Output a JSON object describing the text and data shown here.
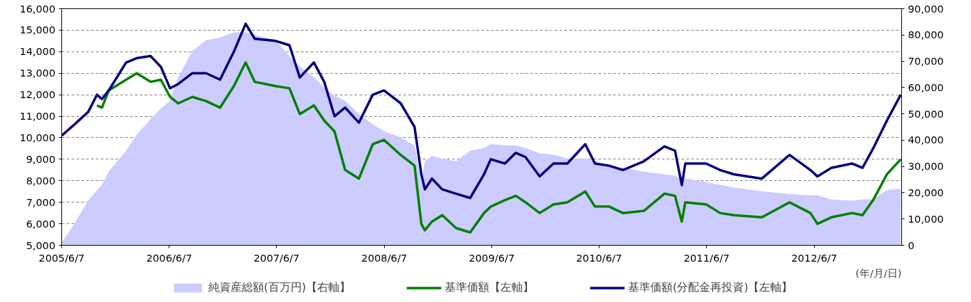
{
  "chart_data": {
    "type": "line",
    "xlabel": "(年/月/日)",
    "x": [
      "2005-06-07",
      "2005-07-19",
      "2005-09-05",
      "2005-10-05",
      "2005-10-22",
      "2005-11-14",
      "2006-01-12",
      "2006-02-17",
      "2006-04-05",
      "2006-05-10",
      "2006-06-10",
      "2006-07-08",
      "2006-08-25",
      "2006-10-11",
      "2006-11-27",
      "2007-01-13",
      "2007-02-22",
      "2007-03-25",
      "2007-06-04",
      "2007-07-21",
      "2007-08-25",
      "2007-10-12",
      "2007-11-16",
      "2007-12-21",
      "2008-01-26",
      "2008-03-13",
      "2008-04-29",
      "2008-06-06",
      "2008-08-02",
      "2008-09-18",
      "2008-10-11",
      "2008-10-23",
      "2008-11-16",
      "2008-12-21",
      "2009-02-06",
      "2009-03-26",
      "2009-05-12",
      "2009-06-04",
      "2009-07-22",
      "2009-08-28",
      "2009-09-30",
      "2009-11-17",
      "2010-01-03",
      "2010-02-19",
      "2010-04-21",
      "2010-05-24",
      "2010-07-11",
      "2010-08-27",
      "2010-11-06",
      "2011-01-15",
      "2011-02-20",
      "2011-03-15",
      "2011-03-27",
      "2011-06-06",
      "2011-07-23",
      "2011-09-08",
      "2011-12-12",
      "2012-03-15",
      "2012-05-25",
      "2012-06-18",
      "2012-08-04",
      "2012-10-14",
      "2012-11-18",
      "2012-12-24",
      "2013-02-09",
      "2013-03-28"
    ],
    "series": [
      {
        "name": "純資産総額(百万円)【右軸】",
        "type": "area",
        "axis": "y2",
        "color": "#ccccff",
        "values": [
          1000,
          8000,
          17000,
          21000,
          23000,
          28000,
          36000,
          42000,
          48000,
          52000,
          55000,
          64000,
          74000,
          78000,
          79000,
          81000,
          81000,
          80000,
          78000,
          72000,
          68000,
          64000,
          60000,
          57000,
          55000,
          50000,
          46000,
          43500,
          41000,
          38000,
          24000,
          32000,
          34000,
          33000,
          32000,
          36000,
          37000,
          38500,
          38000,
          38000,
          37000,
          35000,
          34500,
          33000,
          33000,
          32000,
          30000,
          29500,
          28000,
          27000,
          26500,
          25000,
          25500,
          24000,
          23000,
          22000,
          20500,
          19500,
          19000,
          19000,
          17500,
          17000,
          17500,
          17500,
          21000,
          21500
        ]
      },
      {
        "name": "基準価額【左軸】",
        "type": "line",
        "color": "#008000",
        "values": [
          null,
          null,
          null,
          11500,
          11400,
          12200,
          12700,
          13000,
          12600,
          12700,
          11900,
          11600,
          11900,
          11700,
          11400,
          12400,
          13500,
          12600,
          12400,
          12300,
          11100,
          11500,
          10800,
          10300,
          8500,
          8100,
          9700,
          9900,
          9200,
          8700,
          6000,
          5700,
          6100,
          6400,
          5800,
          5600,
          6500,
          6800,
          7100,
          7300,
          7000,
          6500,
          6900,
          7000,
          7500,
          6800,
          6800,
          6500,
          6600,
          7400,
          7300,
          6100,
          7000,
          6900,
          6500,
          6400,
          6300,
          7000,
          6500,
          6000,
          6300,
          6500,
          6400,
          7100,
          8300,
          9000
        ]
      },
      {
        "name": "基準価額(分配金再投資)【左軸】",
        "type": "line",
        "color": "#000080",
        "values": [
          10100,
          10600,
          11200,
          12000,
          11800,
          12200,
          13500,
          13700,
          13800,
          13300,
          12300,
          12500,
          13000,
          13000,
          12700,
          14000,
          15300,
          14600,
          14500,
          14300,
          12800,
          13500,
          12600,
          11000,
          11400,
          10700,
          12000,
          12200,
          11600,
          10500,
          8300,
          7600,
          8100,
          7600,
          7400,
          7200,
          8300,
          9000,
          8800,
          9300,
          9100,
          8200,
          8800,
          8800,
          9700,
          8800,
          8700,
          8500,
          8900,
          9600,
          9400,
          7800,
          8800,
          8800,
          8500,
          8300,
          8100,
          9200,
          8500,
          8200,
          8600,
          8800,
          8600,
          9500,
          10800,
          12000
        ]
      }
    ],
    "xlim": [
      "2005-06-07",
      "2013-03-31"
    ],
    "xticks": [
      {
        "value": "2005-06-07",
        "label": "2005/6/7"
      },
      {
        "value": "2006-06-07",
        "label": "2006/6/7"
      },
      {
        "value": "2007-06-07",
        "label": "2007/6/7"
      },
      {
        "value": "2008-06-07",
        "label": "2008/6/7"
      },
      {
        "value": "2009-06-07",
        "label": "2009/6/7"
      },
      {
        "value": "2010-06-07",
        "label": "2010/6/7"
      },
      {
        "value": "2011-06-07",
        "label": "2011/6/7"
      },
      {
        "value": "2012-06-07",
        "label": "2012/6/7"
      }
    ],
    "ylim": [
      5000,
      16000
    ],
    "yticks": [
      {
        "value": 5000,
        "label": "5,000"
      },
      {
        "value": 6000,
        "label": "6,000"
      },
      {
        "value": 7000,
        "label": "7,000"
      },
      {
        "value": 8000,
        "label": "8,000"
      },
      {
        "value": 9000,
        "label": "9,000"
      },
      {
        "value": 10000,
        "label": "10,000"
      },
      {
        "value": 11000,
        "label": "11,000"
      },
      {
        "value": 12000,
        "label": "12,000"
      },
      {
        "value": 13000,
        "label": "13,000"
      },
      {
        "value": 14000,
        "label": "14,000"
      },
      {
        "value": 15000,
        "label": "15,000"
      },
      {
        "value": 16000,
        "label": "16,000"
      }
    ],
    "y2lim": [
      0,
      90000
    ],
    "y2ticks": [
      0,
      {
        "value": 10000,
        "label": "10,000"
      },
      {
        "value": 20000,
        "label": "20,000"
      },
      {
        "value": 30000,
        "label": "30,000"
      },
      {
        "value": 40000,
        "label": "40,000"
      },
      {
        "value": 50000,
        "label": "50,000"
      },
      {
        "value": 60000,
        "label": "60,000"
      },
      {
        "value": 70000,
        "label": "70,000"
      },
      {
        "value": 80000,
        "label": "80,000"
      },
      {
        "value": 90000,
        "label": "90,000"
      }
    ],
    "grid": "y",
    "legend": "bottom",
    "line_style": "solid",
    "marker": "none"
  }
}
